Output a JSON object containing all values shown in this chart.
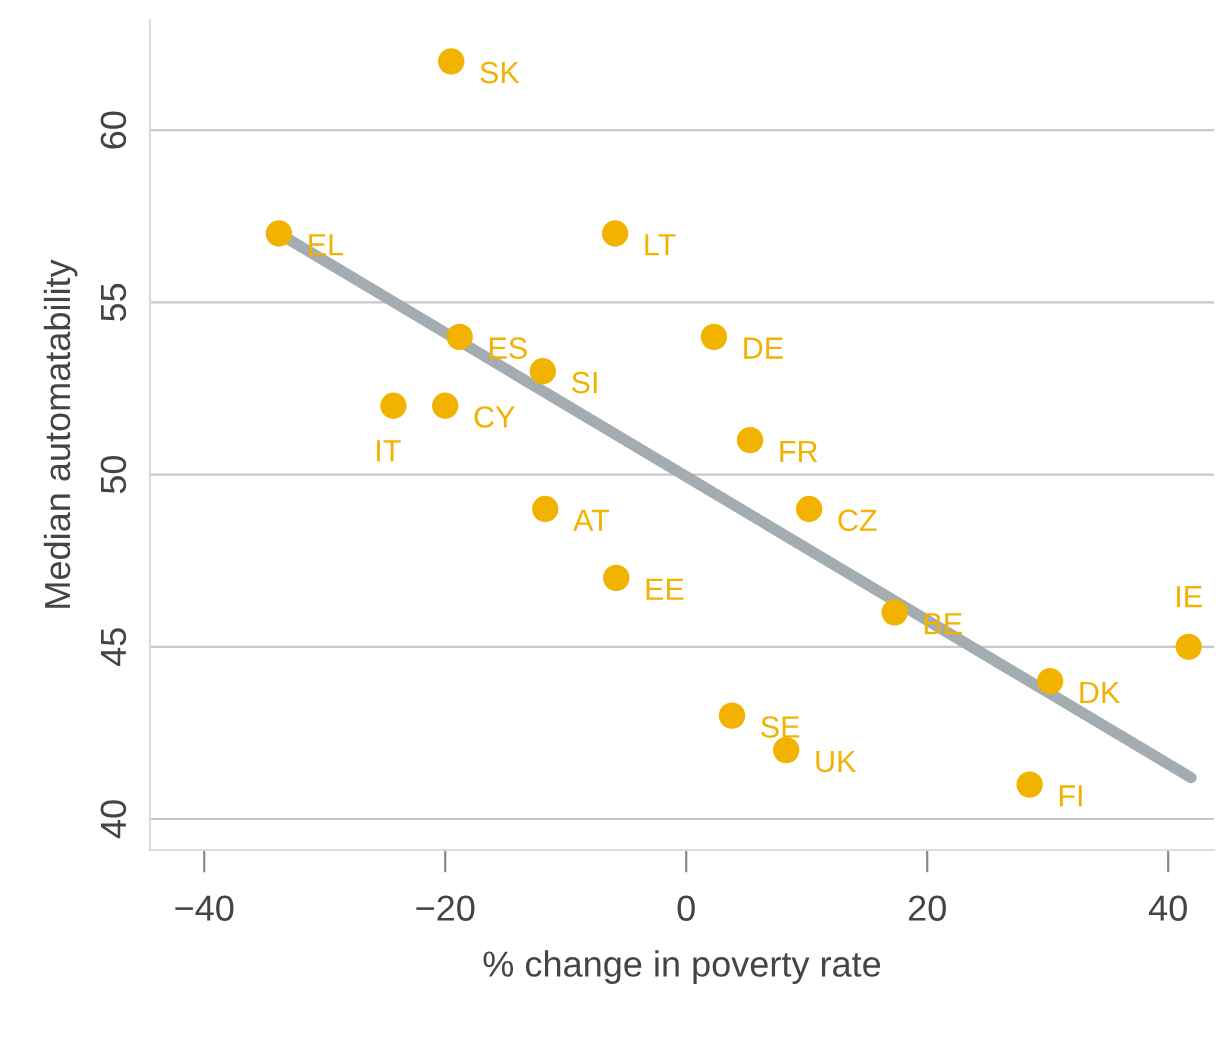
{
  "chart_data": {
    "type": "scatter",
    "xlabel": "% change in poverty rate",
    "ylabel": "Median automatability",
    "series": [
      {
        "color": "#f2b200",
        "x": [
          -19.5,
          -33.8,
          -5.9,
          -18.8,
          2.3,
          -11.9,
          -24.3,
          -20,
          5.3,
          10.2,
          -11.7,
          -5.8,
          17.3,
          41.7,
          30.2,
          3.8,
          8.3,
          28.5
        ],
        "values": [
          62,
          57,
          57,
          54,
          54,
          53,
          52,
          52,
          51,
          49,
          49,
          47,
          46,
          45,
          44,
          43,
          42,
          41
        ]
      },
      {
        "type": "line",
        "marker": "none",
        "color": "#a3acb0",
        "x": [
          -33.8,
          41.9
        ],
        "values": [
          57,
          41.2
        ]
      }
    ],
    "annotations": [
      {
        "text": "SK",
        "x": -19.5,
        "y": 62
      },
      {
        "text": "EL",
        "x": -33.8,
        "y": 57
      },
      {
        "text": "LT",
        "x": -5.9,
        "y": 57
      },
      {
        "text": "ES",
        "x": -18.8,
        "y": 54
      },
      {
        "text": "DE",
        "x": 2.3,
        "y": 54
      },
      {
        "text": "SI",
        "x": -11.9,
        "y": 53
      },
      {
        "text": "IT",
        "x": -24.3,
        "y": 52
      },
      {
        "text": "CY",
        "x": -20,
        "y": 52
      },
      {
        "text": "FR",
        "x": 5.3,
        "y": 51
      },
      {
        "text": "CZ",
        "x": 10.2,
        "y": 49
      },
      {
        "text": "AT",
        "x": -11.7,
        "y": 49
      },
      {
        "text": "EE",
        "x": -5.8,
        "y": 47
      },
      {
        "text": "BE",
        "x": 17.3,
        "y": 46
      },
      {
        "text": "IE",
        "x": 41.7,
        "y": 45
      },
      {
        "text": "DK",
        "x": 30.2,
        "y": 44
      },
      {
        "text": "SE",
        "x": 3.8,
        "y": 43
      },
      {
        "text": "UK",
        "x": 8.3,
        "y": 42
      },
      {
        "text": "FI",
        "x": 28.5,
        "y": 41
      }
    ],
    "xlim": [
      -44.5,
      43.8
    ],
    "ylim": [
      39.1,
      63.2
    ],
    "xticks": [
      -40,
      -20,
      0,
      20,
      40
    ],
    "yticks": [
      40,
      45,
      50,
      55,
      60
    ],
    "grid": "y",
    "marker": "circle"
  }
}
